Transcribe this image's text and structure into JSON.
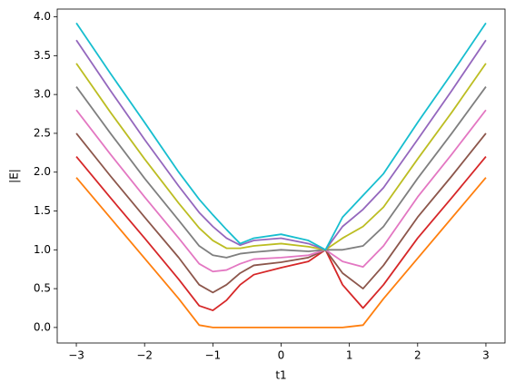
{
  "chart_data": {
    "type": "line",
    "xlabel": "t1",
    "ylabel": "|E|",
    "x": [
      -3,
      -2.5,
      -2,
      -1.5,
      -1.2,
      -1,
      -0.8,
      -0.6,
      -0.4,
      0,
      0.4,
      0.65,
      0.9,
      1.2,
      1.5,
      2,
      2.5,
      3
    ],
    "series": [
      {
        "color": "#ff7f0e",
        "values": [
          1.93,
          1.41,
          0.89,
          0.37,
          0.03,
          0,
          0,
          0,
          0,
          0,
          0,
          0,
          0,
          0.03,
          0.37,
          0.89,
          1.41,
          1.93
        ]
      },
      {
        "color": "#d62728",
        "values": [
          2.2,
          1.67,
          1.15,
          0.62,
          0.28,
          0.22,
          0.35,
          0.55,
          0.68,
          0.77,
          0.85,
          1.0,
          0.55,
          0.25,
          0.55,
          1.15,
          1.67,
          2.2
        ]
      },
      {
        "color": "#8c564b",
        "values": [
          2.5,
          1.95,
          1.42,
          0.9,
          0.55,
          0.45,
          0.55,
          0.7,
          0.8,
          0.84,
          0.9,
          1.0,
          0.7,
          0.5,
          0.8,
          1.42,
          1.95,
          2.5
        ]
      },
      {
        "color": "#e377c2",
        "values": [
          2.8,
          2.23,
          1.68,
          1.15,
          0.82,
          0.72,
          0.74,
          0.82,
          0.88,
          0.9,
          0.93,
          1.0,
          0.85,
          0.78,
          1.05,
          1.68,
          2.23,
          2.8
        ]
      },
      {
        "color": "#7f7f7f",
        "values": [
          3.1,
          2.5,
          1.92,
          1.38,
          1.05,
          0.93,
          0.9,
          0.95,
          0.97,
          1.0,
          0.98,
          1.0,
          1.0,
          1.05,
          1.3,
          1.92,
          2.5,
          3.1
        ]
      },
      {
        "color": "#bcbd22",
        "values": [
          3.4,
          2.77,
          2.17,
          1.6,
          1.28,
          1.12,
          1.02,
          1.02,
          1.05,
          1.08,
          1.04,
          1.0,
          1.15,
          1.3,
          1.55,
          2.17,
          2.77,
          3.4
        ]
      },
      {
        "color": "#9467bd",
        "values": [
          3.7,
          3.05,
          2.42,
          1.82,
          1.48,
          1.3,
          1.15,
          1.06,
          1.12,
          1.15,
          1.08,
          1.0,
          1.3,
          1.52,
          1.8,
          2.42,
          3.05,
          3.7
        ]
      },
      {
        "color": "#17becf",
        "values": [
          3.92,
          3.27,
          2.64,
          2.0,
          1.65,
          1.45,
          1.26,
          1.08,
          1.15,
          1.2,
          1.12,
          1.0,
          1.42,
          1.7,
          1.98,
          2.64,
          3.27,
          3.92
        ]
      }
    ],
    "xlim": [
      -3.28,
      3.28
    ],
    "xticks": [
      {
        "value": -3,
        "label": "−3"
      },
      {
        "value": -2,
        "label": "−2"
      },
      {
        "value": -1,
        "label": "−1"
      },
      0,
      1,
      2,
      3
    ],
    "ylim": [
      -0.2,
      4.1
    ],
    "yticks": [
      {
        "value": 0,
        "label": "0.0"
      },
      {
        "value": 0.5,
        "label": "0.5"
      },
      {
        "value": 1,
        "label": "1.0"
      },
      {
        "value": 1.5,
        "label": "1.5"
      },
      {
        "value": 2,
        "label": "2.0"
      },
      {
        "value": 2.5,
        "label": "2.5"
      },
      {
        "value": 3,
        "label": "3.0"
      },
      {
        "value": 3.5,
        "label": "3.5"
      },
      {
        "value": 4,
        "label": "4.0"
      }
    ],
    "grid": false
  }
}
